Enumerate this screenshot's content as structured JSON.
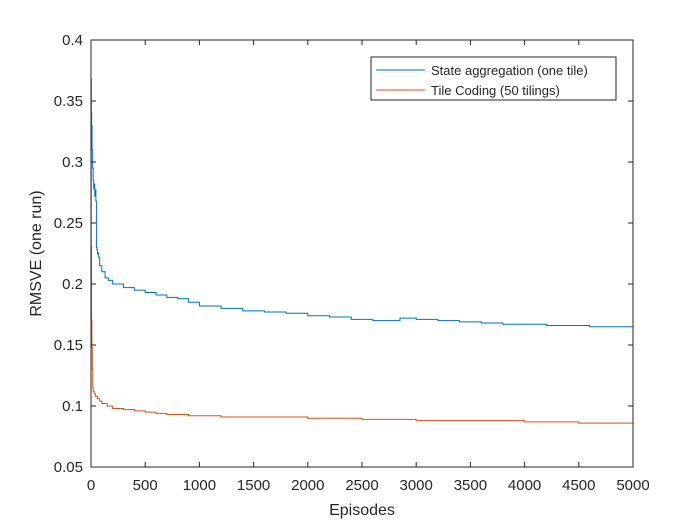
{
  "chart_data": {
    "type": "line",
    "title": "",
    "xlabel": "Episodes",
    "ylabel": "RMSVE (one run)",
    "xlim": [
      0,
      5000
    ],
    "ylim": [
      0.05,
      0.4
    ],
    "xticks": [
      0,
      500,
      1000,
      1500,
      2000,
      2500,
      3000,
      3500,
      4000,
      4500,
      5000
    ],
    "yticks": [
      0.05,
      0.1,
      0.15,
      0.2,
      0.25,
      0.3,
      0.35,
      0.4
    ],
    "xtick_labels": [
      "0",
      "500",
      "1000",
      "1500",
      "2000",
      "2500",
      "3000",
      "3500",
      "4000",
      "4500",
      "5000"
    ],
    "ytick_labels": [
      "0.05",
      "0.1",
      "0.15",
      "0.2",
      "0.25",
      "0.3",
      "0.35",
      "0.4"
    ],
    "grid": false,
    "legend_position": "top-right",
    "series": [
      {
        "name": "State aggregation (one tile)",
        "color": "#0072BD",
        "x": [
          0,
          3,
          6,
          10,
          15,
          20,
          25,
          30,
          35,
          40,
          45,
          50,
          55,
          60,
          70,
          80,
          100,
          130,
          160,
          200,
          300,
          400,
          500,
          600,
          700,
          800,
          900,
          1000,
          1200,
          1400,
          1600,
          1800,
          2000,
          2200,
          2400,
          2600,
          2800,
          2850,
          3000,
          3200,
          3400,
          3600,
          3800,
          4000,
          4200,
          4400,
          4600,
          4800,
          5000
        ],
        "y": [
          0.368,
          0.34,
          0.33,
          0.31,
          0.295,
          0.285,
          0.278,
          0.282,
          0.272,
          0.277,
          0.268,
          0.23,
          0.228,
          0.225,
          0.222,
          0.215,
          0.21,
          0.205,
          0.203,
          0.2,
          0.197,
          0.195,
          0.193,
          0.191,
          0.189,
          0.188,
          0.185,
          0.182,
          0.18,
          0.178,
          0.177,
          0.176,
          0.174,
          0.173,
          0.171,
          0.17,
          0.17,
          0.172,
          0.171,
          0.17,
          0.169,
          0.168,
          0.167,
          0.167,
          0.166,
          0.166,
          0.165,
          0.165,
          0.164
        ]
      },
      {
        "name": "Tile Coding (50 tilings)",
        "color": "#D95319",
        "x": [
          0,
          2,
          5,
          8,
          12,
          16,
          20,
          30,
          40,
          60,
          80,
          100,
          150,
          200,
          300,
          400,
          500,
          600,
          700,
          800,
          900,
          1000,
          1200,
          1500,
          2000,
          2500,
          3000,
          3500,
          4000,
          4500,
          5000
        ],
        "y": [
          0.33,
          0.23,
          0.17,
          0.148,
          0.13,
          0.115,
          0.112,
          0.11,
          0.108,
          0.106,
          0.104,
          0.102,
          0.1,
          0.098,
          0.097,
          0.096,
          0.095,
          0.094,
          0.093,
          0.093,
          0.092,
          0.092,
          0.091,
          0.091,
          0.09,
          0.089,
          0.088,
          0.088,
          0.087,
          0.086,
          0.085
        ]
      }
    ]
  }
}
